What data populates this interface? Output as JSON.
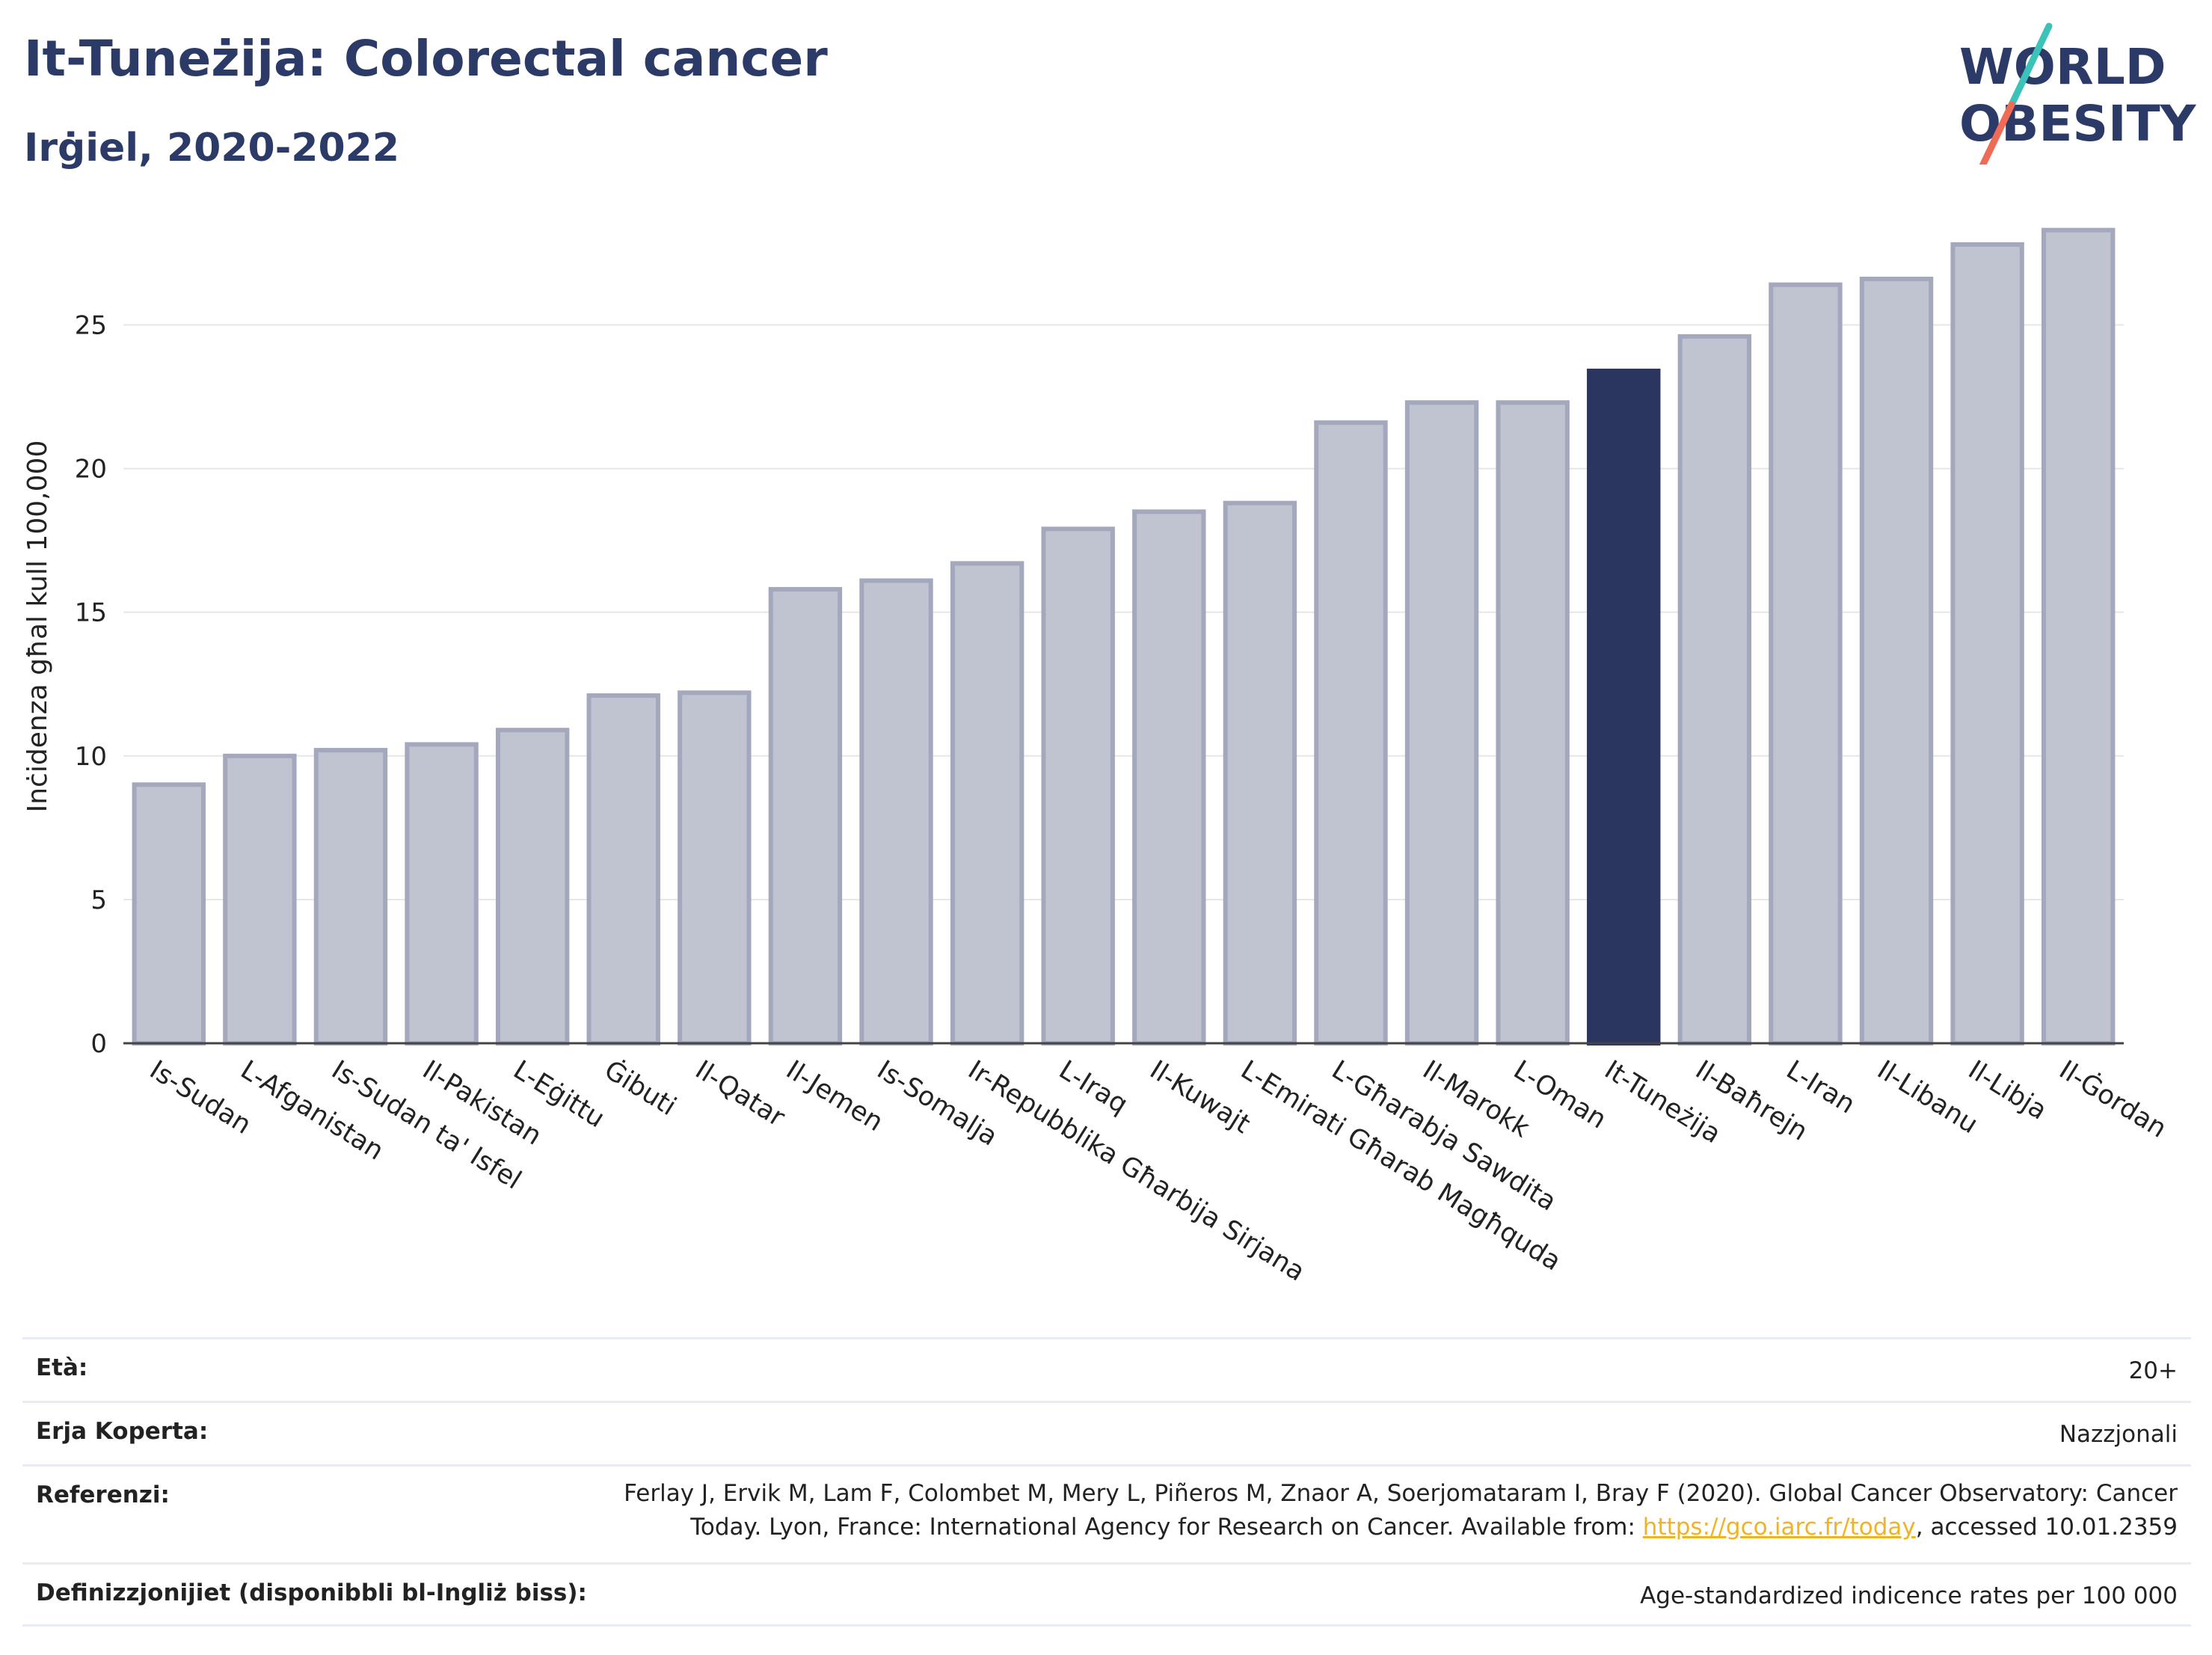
{
  "header": {
    "title": "It-Tuneżija: Colorectal cancer",
    "subtitle": "Irġiel, 2020-2022"
  },
  "logo": {
    "line1": "WORLD",
    "line2": "OBESITY"
  },
  "colors": {
    "highlight": "#2b3660",
    "bar_fill": "#c0c3d0",
    "bar_stroke": "#a3a8bd",
    "title": "#2b3a67",
    "grid": "#e6e6e6",
    "link": "#f0b323",
    "logo_slash_top": "#3cc3b9",
    "logo_slash_bottom": "#ef6b55"
  },
  "chart_data": {
    "type": "bar",
    "title": "It-Tuneżija: Colorectal cancer",
    "subtitle": "Irġiel, 2020-2022",
    "xlabel": "",
    "ylabel": "Inċidenza għal kull 100,000",
    "ylim": [
      0,
      28.5
    ],
    "yticks": [
      0,
      5,
      10,
      15,
      20,
      25
    ],
    "ytick_labels": [
      "0",
      "5",
      "10",
      "15",
      "20",
      "25"
    ],
    "grid": true,
    "highlight_category": "It-Tuneżija",
    "categories": [
      "Is-Sudan",
      "L-Afganistan",
      "Is-Sudan ta' Isfel",
      "Il-Pakistan",
      "L-Eġittu",
      "Ġibuti",
      "Il-Qatar",
      "Il-Jemen",
      "Is-Somalja",
      "Ir-Repubblika Għarbija Sirjana",
      "L-Iraq",
      "Il-Kuwajt",
      "L-Emirati Għarab Magħquda",
      "L-Għarabja Sawdita",
      "Il-Marokk",
      "L-Oman",
      "It-Tuneżija",
      "Il-Baħrejn",
      "L-Iran",
      "Il-Libanu",
      "Il-Libja",
      "Il-Ġordan"
    ],
    "values": [
      9.0,
      10.0,
      10.2,
      10.4,
      10.9,
      12.1,
      12.2,
      15.8,
      16.1,
      16.7,
      17.9,
      18.5,
      18.8,
      21.6,
      22.3,
      22.3,
      23.4,
      24.6,
      26.4,
      26.6,
      27.8,
      28.3
    ]
  },
  "info": {
    "age_label": "Età:",
    "age_value": "20+",
    "area_label": "Erja Koperta:",
    "area_value": "Nazzjonali",
    "ref_label": "Referenzi:",
    "ref_line1": "Ferlay J, Ervik M, Lam F, Colombet M, Mery L, Piñeros M, Znaor A, Soerjomataram I, Bray F (2020). Global Cancer Observatory: Cancer",
    "ref_line2_pre": "Today. Lyon, France: International Agency for Research on Cancer. Available from: ",
    "ref_link": "https://gco.iarc.fr/today",
    "ref_line2_post": ", accessed 10.01.2359",
    "def_label": "Definizzjonijiet (disponibbli bl-Ingliż biss):",
    "def_value": "Age-standardized indicence rates per 100 000"
  }
}
